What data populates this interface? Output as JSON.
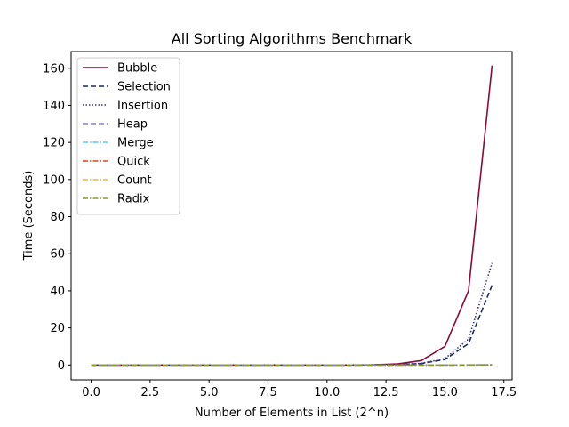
{
  "chart_data": {
    "type": "line",
    "title": "All Sorting Algorithms Benchmark",
    "xlabel": "Number of Elements in List (2^n)",
    "ylabel": "Time (Seconds)",
    "xlim": [
      -0.85,
      17.85
    ],
    "ylim": [
      -8,
      169
    ],
    "xticks": [
      0.0,
      2.5,
      5.0,
      7.5,
      10.0,
      12.5,
      15.0,
      17.5
    ],
    "xtick_labels": [
      "0.0",
      "2.5",
      "5.0",
      "7.5",
      "10.0",
      "12.5",
      "15.0",
      "17.5"
    ],
    "yticks": [
      0,
      20,
      40,
      60,
      80,
      100,
      120,
      140,
      160
    ],
    "ytick_labels": [
      "0",
      "20",
      "40",
      "60",
      "80",
      "100",
      "120",
      "140",
      "160"
    ],
    "grid": false,
    "legend_position": "top-left",
    "x": [
      0,
      1,
      2,
      3,
      4,
      5,
      6,
      7,
      8,
      9,
      10,
      11,
      12,
      13,
      14,
      15,
      16,
      17
    ],
    "series": [
      {
        "name": "Bubble",
        "color": "#8b0a3a",
        "dash": "solid",
        "values": [
          0,
          0,
          0,
          0,
          0,
          0,
          0,
          0,
          0,
          0,
          0.01,
          0.04,
          0.15,
          0.6,
          2.4,
          10,
          40,
          161.5
        ]
      },
      {
        "name": "Selection",
        "color": "#1b2a5c",
        "dash": "dashed",
        "values": [
          0,
          0,
          0,
          0,
          0,
          0,
          0,
          0,
          0,
          0,
          0,
          0.01,
          0.05,
          0.2,
          0.8,
          3,
          11.5,
          43
        ]
      },
      {
        "name": "Insertion",
        "color": "#3a3a7a",
        "dash": "dotted",
        "values": [
          0,
          0,
          0,
          0,
          0,
          0,
          0,
          0,
          0,
          0,
          0,
          0.01,
          0.05,
          0.2,
          0.9,
          3.5,
          14,
          55
        ]
      },
      {
        "name": "Heap",
        "color": "#8a7fd0",
        "dash": "dashed",
        "values": [
          0,
          0,
          0,
          0,
          0,
          0,
          0,
          0,
          0,
          0,
          0,
          0,
          0,
          0,
          0.01,
          0.02,
          0.05,
          0.1
        ]
      },
      {
        "name": "Merge",
        "color": "#5bc8ec",
        "dash": "dashdot",
        "values": [
          0,
          0,
          0,
          0,
          0,
          0,
          0,
          0,
          0,
          0,
          0,
          0,
          0,
          0,
          0.01,
          0.02,
          0.04,
          0.08
        ]
      },
      {
        "name": "Quick",
        "color": "#e8401c",
        "dash": "dashdot",
        "values": [
          0,
          0,
          0,
          0,
          0,
          0,
          0,
          0,
          0,
          0,
          0,
          0,
          0,
          0,
          0,
          0.01,
          0.03,
          0.06
        ]
      },
      {
        "name": "Count",
        "color": "#f2b81f",
        "dash": "dashdot",
        "values": [
          0,
          0,
          0,
          0,
          0,
          0,
          0,
          0,
          0,
          0,
          0,
          0,
          0,
          0,
          0,
          0.01,
          0.01,
          0.03
        ]
      },
      {
        "name": "Radix",
        "color": "#8a9a2a",
        "dash": "dashdot",
        "values": [
          0,
          0,
          0,
          0,
          0,
          0,
          0,
          0,
          0,
          0,
          0,
          0,
          0,
          0,
          0,
          0.01,
          0.02,
          0.04
        ]
      }
    ]
  }
}
